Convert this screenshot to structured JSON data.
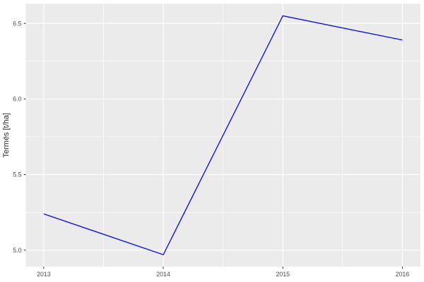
{
  "chart_data": {
    "type": "line",
    "title": "",
    "xlabel": "",
    "ylabel": "Termés [t/ha]",
    "x": [
      2013,
      2014,
      2015,
      2016
    ],
    "series": [
      {
        "name": "Termés",
        "color": "#0E0EE5",
        "values": [
          5.24,
          4.97,
          6.55,
          6.39
        ]
      }
    ],
    "x_ticks": [
      {
        "value": 2013,
        "label": "2013"
      },
      {
        "value": 2014,
        "label": "2014"
      },
      {
        "value": 2015,
        "label": "2015"
      },
      {
        "value": 2016,
        "label": "2016"
      }
    ],
    "y_ticks": [
      {
        "value": 5.0,
        "label": "5.0"
      },
      {
        "value": 5.5,
        "label": "5.5"
      },
      {
        "value": 6.0,
        "label": "6.0"
      },
      {
        "value": 6.5,
        "label": "6.5"
      }
    ],
    "xlim": [
      2012.85,
      2016.15
    ],
    "ylim": [
      4.89,
      6.63
    ],
    "grid": "major+minor",
    "legend": "none",
    "theme": {
      "panel_background": "#EBEBEB",
      "grid_major_color": "#FFFFFF",
      "grid_minor_color": "#FFFFFF",
      "outer_background": "#FFFFFF",
      "tick_label_color": "#4D4D4D",
      "axis_title_color": "#2B2B2B",
      "tick_mark_color": "#333333"
    }
  }
}
